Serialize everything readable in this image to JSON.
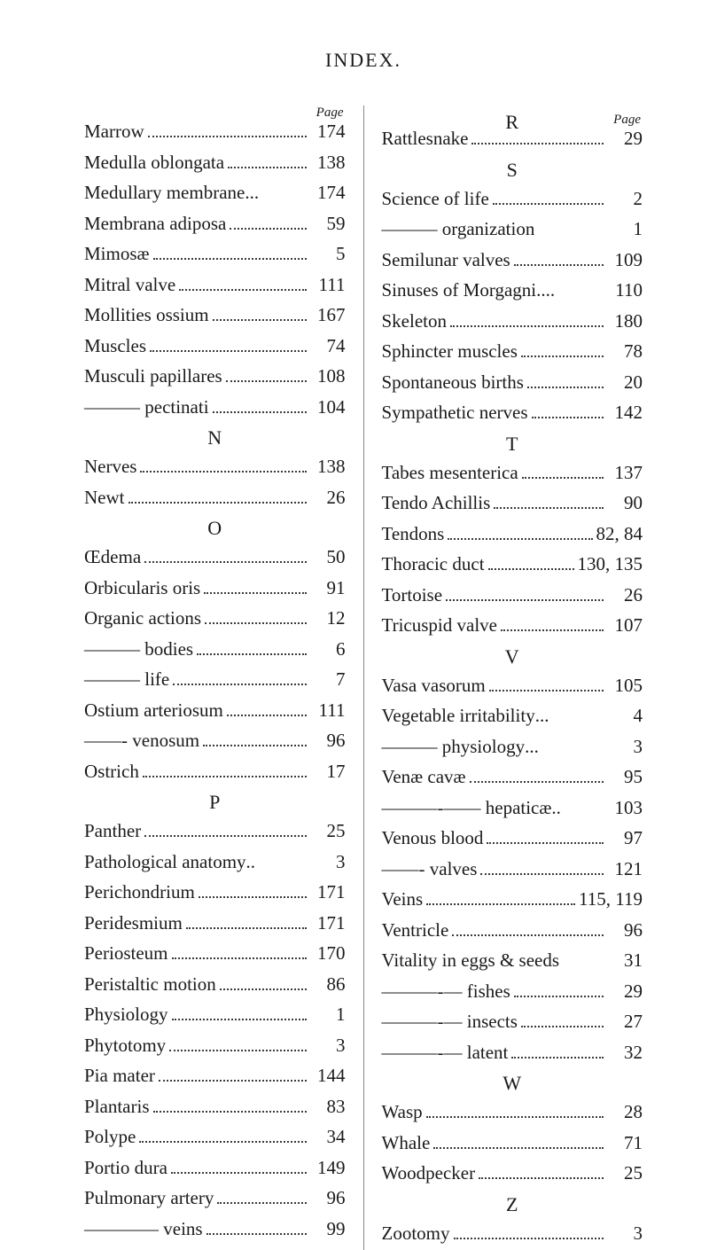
{
  "header": "INDEX.",
  "pageLabel": "Page",
  "pageLabelRight": "Page",
  "leftColumn": [
    {
      "text": "Marrow",
      "page": "174"
    },
    {
      "text": "Medulla oblongata",
      "page": "138"
    },
    {
      "text": "Medullary membrane",
      "dots": false,
      "sep": "...",
      "page": "174"
    },
    {
      "text": "Membrana adiposa",
      "page": "59"
    },
    {
      "text": "Mimosæ",
      "page": "5"
    },
    {
      "text": "Mitral valve",
      "page": "111"
    },
    {
      "text": "Mollities ossium",
      "page": "167"
    },
    {
      "text": "Muscles",
      "page": "74"
    },
    {
      "text": "Musculi papillares",
      "page": "108"
    },
    {
      "text": "——— pectinati",
      "page": "104",
      "indent": 0
    },
    {
      "section": "N"
    },
    {
      "text": "Nerves",
      "page": "138"
    },
    {
      "text": "Newt",
      "page": "26"
    },
    {
      "section": "O"
    },
    {
      "text": "Œdema",
      "page": "50"
    },
    {
      "text": "Orbicularis oris",
      "page": "91"
    },
    {
      "text": "Organic actions",
      "page": "12"
    },
    {
      "text": "——— bodies",
      "page": "6",
      "indent": 0
    },
    {
      "text": "——— life",
      "page": "7",
      "indent": 0
    },
    {
      "text": "Ostium arteriosum",
      "page": "111"
    },
    {
      "text": "——- venosum",
      "page": "96",
      "indent": 0
    },
    {
      "text": "Ostrich",
      "page": "17"
    },
    {
      "section": "P"
    },
    {
      "text": "Panther",
      "page": "25"
    },
    {
      "text": "Pathological anatomy",
      "dots": false,
      "sep": "..",
      "page": "3"
    },
    {
      "text": "Perichondrium",
      "page": "171"
    },
    {
      "text": "Peridesmium",
      "page": "171"
    },
    {
      "text": "Periosteum",
      "page": "170"
    },
    {
      "text": "Peristaltic motion",
      "page": "86"
    },
    {
      "text": "Physiology",
      "page": "1"
    },
    {
      "text": "Phytotomy",
      "page": "3"
    },
    {
      "text": "Pia mater",
      "page": "144"
    },
    {
      "text": "Plantaris",
      "page": "83"
    },
    {
      "text": "Polype",
      "page": "34"
    },
    {
      "text": "Portio dura",
      "page": "149"
    },
    {
      "text": "Pulmonary artery",
      "page": "96"
    },
    {
      "text": "———— veins",
      "page": "99",
      "indent": 0
    }
  ],
  "rightColumn": [
    {
      "section": "R"
    },
    {
      "text": "Rattlesnake",
      "page": "29"
    },
    {
      "section": "S"
    },
    {
      "text": "Science of life",
      "page": "2"
    },
    {
      "text": "——— organization",
      "page": "1",
      "nodots": true
    },
    {
      "text": "Semilunar valves",
      "page": "109"
    },
    {
      "text": "Sinuses of Morgagni",
      "dots": false,
      "sep": "....",
      "page": "110"
    },
    {
      "text": "Skeleton",
      "page": "180"
    },
    {
      "text": "Sphincter muscles",
      "page": "78"
    },
    {
      "text": "Spontaneous births",
      "page": "20"
    },
    {
      "text": "Sympathetic nerves",
      "page": "142"
    },
    {
      "section": "T"
    },
    {
      "text": "Tabes mesenterica",
      "page": "137"
    },
    {
      "text": "Tendo Achillis",
      "page": "90"
    },
    {
      "text": "Tendons",
      "page": "82, 84",
      "comma": true
    },
    {
      "text": "Thoracic duct",
      "page": "130, 135",
      "comma": true
    },
    {
      "text": "Tortoise",
      "page": "26"
    },
    {
      "text": "Tricuspid valve",
      "page": "107"
    },
    {
      "section": "V"
    },
    {
      "text": "Vasa vasorum",
      "page": "105"
    },
    {
      "text": "Vegetable irritability",
      "dots": false,
      "sep": "...",
      "page": "4"
    },
    {
      "text": "——— physiology",
      "dots": false,
      "sep": "...",
      "page": "3"
    },
    {
      "text": "Venæ cavæ",
      "page": "95"
    },
    {
      "text": "———-—— hepaticæ",
      "dots": false,
      "sep": "..",
      "page": "103"
    },
    {
      "text": "Venous blood",
      "page": "97"
    },
    {
      "text": "——- valves",
      "page": "121"
    },
    {
      "text": "Veins",
      "page": "115, 119",
      "comma": true
    },
    {
      "text": "Ventricle",
      "page": "96"
    },
    {
      "text": "Vitality in eggs & seeds",
      "page": "31",
      "nodots": true
    },
    {
      "text": "———-— fishes",
      "page": "29"
    },
    {
      "text": "———-— insects",
      "page": "27"
    },
    {
      "text": "———-— latent",
      "page": "32"
    },
    {
      "section": "W"
    },
    {
      "text": "Wasp",
      "page": "28"
    },
    {
      "text": "Whale",
      "page": "71"
    },
    {
      "text": "Woodpecker",
      "page": "25"
    },
    {
      "section": "Z"
    },
    {
      "text": "Zootomy",
      "page": "3"
    }
  ]
}
